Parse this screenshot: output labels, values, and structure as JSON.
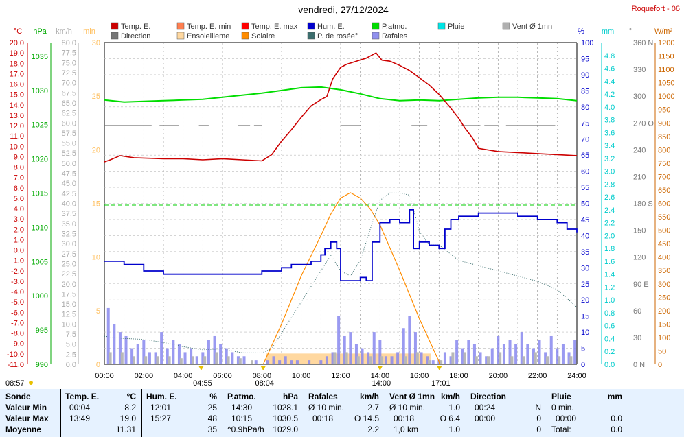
{
  "page": {
    "title": "vendredi, 27/12/2024",
    "station": "Roquefort - 06"
  },
  "legend": [
    {
      "label": "Temp. E.",
      "color": "#cc0000"
    },
    {
      "label": "Temp. E. min",
      "color": "#ff7f50"
    },
    {
      "label": "Temp. E. max",
      "color": "#ff0000"
    },
    {
      "label": "Hum. E.",
      "color": "#0000cc"
    },
    {
      "label": "P.atmo.",
      "color": "#00dd00"
    },
    {
      "label": "Pluie",
      "color": "#00e5e5"
    },
    {
      "label": "Vent Ø 1mn",
      "color": "#b0b0b0"
    },
    {
      "label": "Direction",
      "color": "#777777"
    },
    {
      "label": "Ensoleilleme",
      "color": "#ffd8a0"
    },
    {
      "label": "Solaire",
      "color": "#ff8c00"
    },
    {
      "label": "P. de rosée°",
      "color": "#3c6e6e"
    },
    {
      "label": "Rafales",
      "color": "#9090ee"
    }
  ],
  "axis_units": {
    "temp": "°C",
    "pressure": "hPa",
    "wind": "km/h",
    "sun": "min",
    "humidity": "%",
    "rain": "mm",
    "direction": "°",
    "solar": "W/m²"
  },
  "axis_ticks": {
    "temp": [
      "20.0",
      "19.0",
      "18.0",
      "17.0",
      "16.0",
      "15.0",
      "14.0",
      "13.0",
      "12.0",
      "11.0",
      "10.0",
      "9.0",
      "8.0",
      "7.0",
      "6.0",
      "5.0",
      "4.0",
      "3.0",
      "2.0",
      "1.0",
      "0.0",
      "-1.0",
      "-2.0",
      "-3.0",
      "-4.0",
      "-5.0",
      "-6.0",
      "-7.0",
      "-8.0",
      "-9.0",
      "-10.0",
      "-11.0"
    ],
    "pressure": [
      "1035",
      "1030",
      "1025",
      "1020",
      "1015",
      "1010",
      "1005",
      "1000",
      "995",
      "990"
    ],
    "wind": [
      "80.0",
      "77.5",
      "75.0",
      "72.5",
      "70.0",
      "67.5",
      "65.0",
      "62.5",
      "60.0",
      "57.5",
      "55.0",
      "52.5",
      "50.0",
      "47.5",
      "45.0",
      "42.5",
      "40.0",
      "37.5",
      "35.0",
      "32.5",
      "30.0",
      "27.5",
      "25.0",
      "22.5",
      "20.0",
      "17.5",
      "15.0",
      "12.5",
      "10.0",
      "7.5",
      "5.0",
      "2.5",
      "0.0"
    ],
    "sun": [
      "30",
      "25",
      "20",
      "15",
      "10",
      "5",
      "0"
    ],
    "humidity": [
      "100",
      "95",
      "90",
      "85",
      "80",
      "75",
      "70",
      "65",
      "60",
      "55",
      "50",
      "45",
      "40",
      "35",
      "30",
      "25",
      "20",
      "15",
      "10",
      "5",
      "0"
    ],
    "rain": [
      "4.8",
      "4.6",
      "4.4",
      "4.2",
      "4.0",
      "3.8",
      "3.6",
      "3.4",
      "3.2",
      "3.0",
      "2.8",
      "2.6",
      "2.4",
      "2.2",
      "2.0",
      "1.8",
      "1.6",
      "1.4",
      "1.2",
      "1.0",
      "0.8",
      "0.6",
      "0.4",
      "0.2",
      "0.0"
    ],
    "direction": [
      "360 N",
      "330",
      "300",
      "270 O",
      "240",
      "210",
      "180 S",
      "150",
      "120",
      "90 E",
      "60",
      "30",
      "0 N"
    ],
    "solar": [
      "1200",
      "1150",
      "1100",
      "1050",
      "1000",
      "950",
      "900",
      "850",
      "800",
      "750",
      "700",
      "650",
      "600",
      "550",
      "500",
      "450",
      "400",
      "350",
      "300",
      "250",
      "200",
      "150",
      "100",
      "50",
      "0"
    ],
    "time": [
      "00:00",
      "02:00",
      "04:00",
      "06:00",
      "08:00",
      "10:00",
      "12:00",
      "14:00",
      "16:00",
      "18:00",
      "20:00",
      "22:00",
      "24:00"
    ]
  },
  "time_markers": [
    {
      "label": "08:57",
      "time": "00:00"
    },
    {
      "label": "04:55",
      "time": "04:55"
    },
    {
      "label": "08:04",
      "time": "08:04"
    },
    {
      "label": "14:00",
      "time": "14:00"
    },
    {
      "label": "17:01",
      "time": "17:01"
    }
  ],
  "chart_data": {
    "type": "line",
    "x_unit": "hour",
    "xlim": [
      0,
      24
    ],
    "ylim": {
      "temp": [
        -11,
        20
      ],
      "pressure": [
        990,
        1037
      ],
      "wind": [
        0,
        80
      ],
      "sun": [
        0,
        30
      ],
      "humidity": [
        0,
        100
      ],
      "rain": [
        0,
        5
      ],
      "direction": [
        0,
        360
      ],
      "solar": [
        0,
        1200
      ]
    },
    "series": [
      {
        "name": "Temp. E.",
        "axis": "temp",
        "x": [
          0,
          0.3,
          0.8,
          1.5,
          3,
          4,
          5,
          6,
          7,
          8,
          8.5,
          9,
          9.5,
          10,
          10.5,
          11,
          11.3,
          11.6,
          12,
          12.3,
          12.8,
          13.3,
          13.8,
          14.1,
          14.5,
          15,
          15.5,
          16,
          16.5,
          17,
          17.5,
          18,
          18.3,
          18.7,
          19,
          20,
          21,
          22,
          23,
          24
        ],
        "y": [
          8.5,
          8.7,
          9.1,
          8.9,
          8.8,
          8.8,
          8.7,
          8.8,
          8.7,
          8.6,
          9.2,
          10.5,
          11.6,
          12.8,
          13.9,
          14.5,
          14.8,
          16.5,
          17.6,
          17.9,
          18.2,
          18.5,
          19.0,
          18.3,
          18.2,
          17.8,
          17.3,
          16.6,
          15.9,
          15.0,
          13.9,
          12.7,
          11.8,
          10.8,
          9.8,
          9.5,
          9.4,
          9.3,
          9.2,
          9.1
        ]
      },
      {
        "name": "Hum. E.",
        "axis": "humidity",
        "x": [
          0,
          1,
          2,
          3,
          4,
          5,
          6,
          7,
          8,
          8.5,
          9,
          9.5,
          10,
          10.5,
          11,
          11.2,
          11.5,
          11.8,
          12,
          12.5,
          13,
          13.3,
          13.6,
          14,
          14.5,
          15,
          15.5,
          15.7,
          16,
          16.5,
          17,
          17.3,
          17.6,
          18,
          18.5,
          19,
          20,
          21,
          22,
          23,
          23.5,
          24
        ],
        "y": [
          32,
          31,
          29,
          28,
          28,
          28,
          28,
          28,
          29,
          29,
          30,
          31,
          31,
          32,
          34,
          36,
          38,
          36,
          26,
          26,
          27,
          26,
          38,
          44,
          45,
          44,
          48,
          36,
          38,
          37,
          36,
          42,
          45,
          46,
          46,
          47,
          47,
          46,
          45,
          44,
          42,
          41
        ]
      },
      {
        "name": "P. de rosée°",
        "axis": "temp",
        "x": [
          0,
          1,
          2,
          3,
          4,
          5,
          6,
          7,
          8,
          8.5,
          9,
          9.5,
          10,
          10.5,
          11,
          11.5,
          12,
          12.5,
          13,
          13.5,
          14,
          14.5,
          15,
          15.5,
          16,
          16.5,
          17,
          18,
          19,
          20,
          21,
          22,
          23,
          24
        ],
        "y": [
          -8.3,
          -8.5,
          -8.6,
          -8.9,
          -9.3,
          -9.6,
          -9.5,
          -9.9,
          -9.9,
          -9.5,
          -8.0,
          -6.5,
          -5.0,
          -3.5,
          -2.0,
          -0.5,
          -2.0,
          -2.5,
          -1.0,
          2.0,
          4.8,
          5.5,
          5.5,
          5.3,
          1.8,
          0.5,
          0.5,
          -1.0,
          -1.5,
          -2.0,
          -2.5,
          -3.0,
          -3.8,
          -5.5
        ]
      },
      {
        "name": "P.atmo.",
        "axis": "pressure",
        "x": [
          0,
          1,
          2,
          3,
          4,
          5,
          6,
          7,
          8,
          9,
          10,
          11,
          12,
          13,
          14,
          15,
          16,
          17,
          18,
          19,
          20,
          21,
          22,
          23,
          24
        ],
        "y": [
          1028.6,
          1028.3,
          1028.4,
          1028.5,
          1028.6,
          1028.7,
          1029.0,
          1029.3,
          1029.6,
          1030.0,
          1030.4,
          1030.5,
          1030.1,
          1029.5,
          1028.8,
          1028.5,
          1028.6,
          1028.5,
          1028.7,
          1028.9,
          1029.0,
          1029.0,
          1028.9,
          1028.8,
          1028.5
        ]
      },
      {
        "name": "Solaire",
        "axis": "solar",
        "x": [
          8.07,
          9,
          10,
          11,
          11.5,
          12,
          12.5,
          13,
          13.5,
          14,
          15,
          16,
          16.5,
          17,
          17.02
        ],
        "y": [
          0,
          150,
          330,
          480,
          560,
          620,
          640,
          620,
          580,
          520,
          350,
          170,
          90,
          10,
          0
        ]
      },
      {
        "name": "Direction",
        "axis": "direction",
        "segments": [
          [
            0,
            2.4
          ],
          [
            2.8,
            3.8
          ],
          [
            4.8,
            5.3
          ],
          [
            6.8,
            7.4
          ],
          [
            7.6,
            8.0
          ],
          [
            12.0,
            13.0
          ],
          [
            15.6,
            16.4
          ],
          [
            18.1,
            19.1
          ],
          [
            19.3,
            20.0
          ],
          [
            20.4,
            22.9
          ]
        ],
        "value": 267
      },
      {
        "name": "Rafales",
        "axis": "wind",
        "kind": "bars",
        "x": [
          0.2,
          0.5,
          0.8,
          1.1,
          1.4,
          1.7,
          2.0,
          2.3,
          2.6,
          2.9,
          3.2,
          3.5,
          3.8,
          4.1,
          4.4,
          4.7,
          5.0,
          5.3,
          5.6,
          5.9,
          6.2,
          6.5,
          6.8,
          7.1,
          7.4,
          7.7,
          8.0,
          8.3,
          8.6,
          8.9,
          9.2,
          9.5,
          9.8,
          10.1,
          10.4,
          10.7,
          11.0,
          11.3,
          11.6,
          11.9,
          12.2,
          12.5,
          12.8,
          13.1,
          13.4,
          13.7,
          14.0,
          14.3,
          14.6,
          14.9,
          15.2,
          15.5,
          15.8,
          16.1,
          16.4,
          16.7,
          17.0,
          17.3,
          17.6,
          17.9,
          18.2,
          18.5,
          18.8,
          19.1,
          19.4,
          19.7,
          20.0,
          20.3,
          20.6,
          20.9,
          21.2,
          21.5,
          21.8,
          22.1,
          22.4,
          22.7,
          23.0,
          23.3,
          23.6,
          23.9
        ],
        "y": [
          14,
          10,
          8,
          7,
          4,
          5,
          6,
          3,
          3,
          8,
          4,
          6,
          5,
          3,
          4,
          2,
          3,
          6,
          7,
          5,
          4,
          3,
          2,
          2,
          0,
          1,
          0,
          1,
          2,
          1,
          2,
          1,
          1,
          0,
          1,
          0,
          1,
          2,
          3,
          12,
          7,
          8,
          5,
          4,
          3,
          8,
          6,
          2,
          2,
          3,
          9,
          12,
          8,
          3,
          2,
          1,
          1,
          3,
          2,
          6,
          4,
          6,
          5,
          3,
          2,
          4,
          7,
          5,
          6,
          5,
          8,
          5,
          4,
          6,
          3,
          7,
          4,
          5,
          3,
          6
        ]
      },
      {
        "name": "Vent Ø 1mn",
        "axis": "wind",
        "kind": "bars",
        "x": [
          0.3,
          0.9,
          1.5,
          2.1,
          2.7,
          3.3,
          3.9,
          4.5,
          5.1,
          5.7,
          6.3,
          6.9,
          7.5,
          11.7,
          12.3,
          12.9,
          13.5,
          14.1,
          15.3,
          15.9,
          16.5,
          17.1,
          17.7,
          18.3,
          18.9,
          19.5,
          20.1,
          20.7,
          21.3,
          21.9,
          22.5,
          23.1,
          23.7
        ],
        "y": [
          3,
          3,
          2,
          2,
          2,
          2,
          1.5,
          2,
          2,
          3,
          2,
          1.5,
          1,
          3,
          3,
          2,
          2,
          2,
          2,
          3,
          1,
          1,
          3,
          3,
          2,
          2,
          3,
          2,
          2,
          3,
          2,
          2,
          2
        ]
      },
      {
        "name": "Ensoleilleme",
        "axis": "sun",
        "x_start": 8.2,
        "x_end": 16.6,
        "y": 1
      }
    ]
  },
  "stats": {
    "headers": {
      "sonde": "Sonde",
      "temp": "Temp. E.",
      "temp_unit": "°C",
      "hum": "Hum. E.",
      "hum_unit": "%",
      "patmo": "P.atmo.",
      "patmo_unit": "hPa",
      "rafales": "Rafales",
      "rafales_unit": "km/h",
      "vent": "Vent Ø 1mn",
      "vent_unit": "km/h",
      "direction": "Direction",
      "pluie": "Pluie",
      "pluie_unit": "mm"
    },
    "rows": [
      {
        "label": "Valeur Min",
        "temp_time": "00:04",
        "temp_val": "8.2",
        "hum_time": "12:01",
        "hum_val": "25",
        "patmo_time": "14:30",
        "patmo_val": "1028.1",
        "raf_desc": "Ø 10 min.",
        "raf_val": "2.7",
        "vent_desc": "Ø 10 min.",
        "vent_val": "1.0",
        "dir_time": "00:24",
        "dir_val": "N",
        "pluie_desc": "0 min.",
        "pluie_val": ""
      },
      {
        "label": "Valeur Max",
        "temp_time": "13:49",
        "temp_val": "19.0",
        "hum_time": "15:27",
        "hum_val": "48",
        "patmo_time": "10:15",
        "patmo_val": "1030.5",
        "raf_desc": "00:18",
        "raf_val": "O 14.5",
        "vent_desc": "00:18",
        "vent_val": "O 6.4",
        "dir_time": "00:00",
        "dir_val": "0",
        "pluie_desc": "00:00",
        "pluie_val": "0.0"
      },
      {
        "label": "Moyenne",
        "temp_time": "",
        "temp_val": "11.31",
        "hum_time": "",
        "hum_val": "35",
        "patmo_time": "^0.9hPa/h",
        "patmo_val": "1029.0",
        "raf_desc": "",
        "raf_val": "2.2",
        "vent_desc": "1,0 km",
        "vent_val": "1.0",
        "dir_time": "",
        "dir_val": "0",
        "pluie_desc": "Total:",
        "pluie_val": "0.0"
      }
    ]
  }
}
